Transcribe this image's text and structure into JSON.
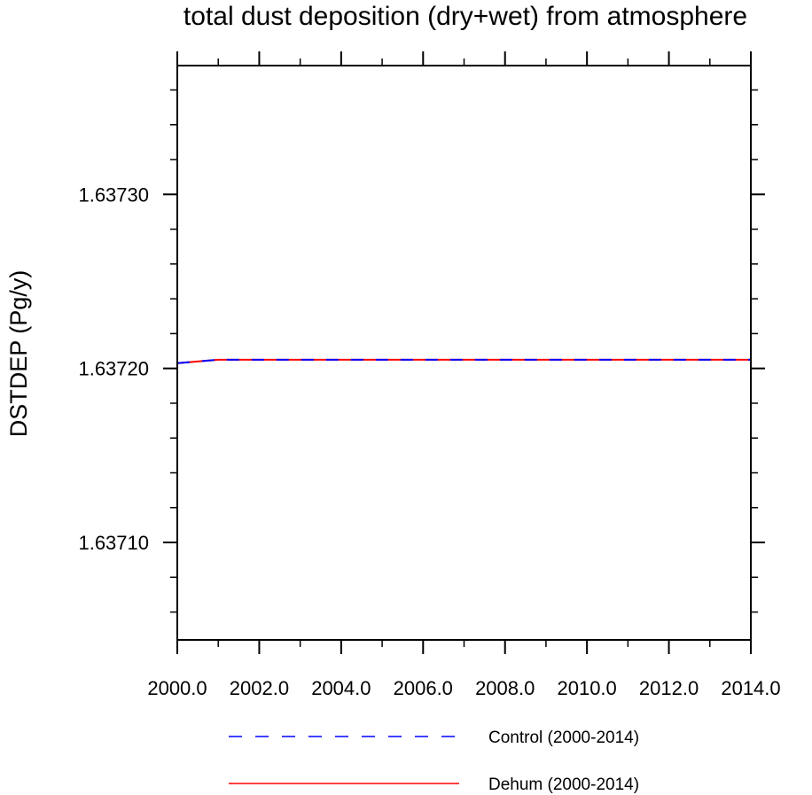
{
  "chart_data": {
    "type": "line",
    "title": "total dust deposition (dry+wet) from atmosphere",
    "xlabel": "",
    "ylabel": "DSTDEP  (Pg/y)",
    "xlim": [
      2000.0,
      2014.0
    ],
    "ylim": [
      1.637044,
      1.637374
    ],
    "x_ticks": [
      2000.0,
      2002.0,
      2004.0,
      2006.0,
      2008.0,
      2010.0,
      2012.0,
      2014.0
    ],
    "x_tick_labels": [
      "2000.0",
      "2002.0",
      "2004.0",
      "2006.0",
      "2008.0",
      "2010.0",
      "2012.0",
      "2014.0"
    ],
    "x_minor_ticks": [
      2001.0,
      2003.0,
      2005.0,
      2007.0,
      2009.0,
      2011.0,
      2013.0
    ],
    "y_ticks": [
      1.6371,
      1.6372,
      1.6373
    ],
    "y_tick_labels": [
      "1.63710",
      "1.63720",
      "1.63730"
    ],
    "y_minor_ticks": [
      1.63706,
      1.63708,
      1.63712,
      1.63714,
      1.63716,
      1.63718,
      1.63722,
      1.63724,
      1.63726,
      1.63728,
      1.63732,
      1.63734,
      1.63736
    ],
    "grid": false,
    "legend_position": "bottom",
    "series": [
      {
        "name": "Control (2000-2014)",
        "color": "#0000ff",
        "style": "dashed",
        "x": [
          2000,
          2001,
          2002,
          2003,
          2004,
          2005,
          2006,
          2007,
          2008,
          2009,
          2010,
          2011,
          2012,
          2013,
          2014
        ],
        "values": [
          1.637203,
          1.637205,
          1.637205,
          1.637205,
          1.637205,
          1.637205,
          1.637205,
          1.637205,
          1.637205,
          1.637205,
          1.637205,
          1.637205,
          1.637205,
          1.637205,
          1.637205
        ]
      },
      {
        "name": "Dehum (2000-2014)",
        "color": "#ff0000",
        "style": "solid",
        "x": [
          2000,
          2001,
          2002,
          2003,
          2004,
          2005,
          2006,
          2007,
          2008,
          2009,
          2010,
          2011,
          2012,
          2013,
          2014
        ],
        "values": [
          1.637203,
          1.637205,
          1.637205,
          1.637205,
          1.637205,
          1.637205,
          1.637205,
          1.637205,
          1.637205,
          1.637205,
          1.637205,
          1.637205,
          1.637205,
          1.637205,
          1.637205
        ]
      }
    ]
  }
}
